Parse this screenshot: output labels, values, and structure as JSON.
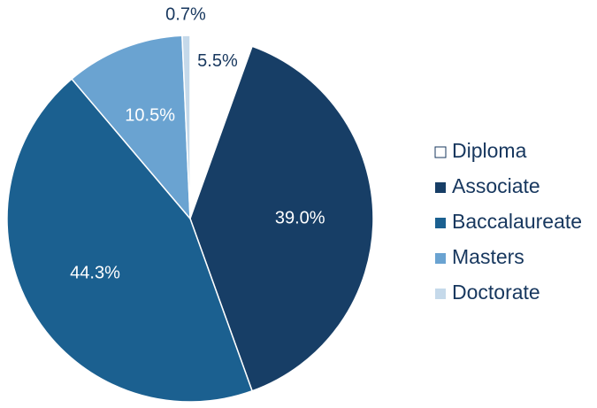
{
  "chart_data": {
    "type": "pie",
    "categories": [
      "Diploma",
      "Associate",
      "Baccalaureate",
      "Masters",
      "Doctorate"
    ],
    "values": [
      5.5,
      39.0,
      44.3,
      10.5,
      0.7
    ],
    "value_labels": [
      "5.5%",
      "39.0%",
      "44.3%",
      "10.5%",
      "0.7%"
    ],
    "colors": [
      "#ffffff",
      "#173e66",
      "#1b6090",
      "#6aa3d1",
      "#c5d9ea"
    ],
    "legend": "right"
  }
}
